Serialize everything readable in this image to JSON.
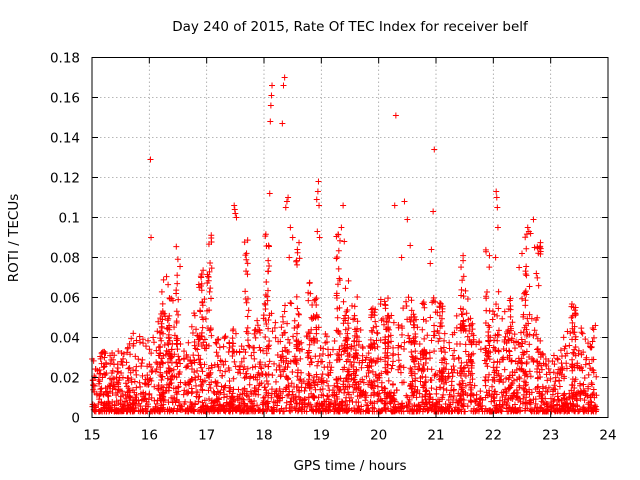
{
  "chart_data": {
    "type": "scatter",
    "title": "Day 240 of 2015, Rate Of TEC Index for receiver belf",
    "xlabel": "GPS time / hours",
    "ylabel": "ROTI / TECUs",
    "xlim": [
      15,
      24
    ],
    "ylim": [
      0,
      0.18
    ],
    "xticks": [
      15,
      16,
      17,
      18,
      19,
      20,
      21,
      22,
      23,
      24
    ],
    "xtick_labels": [
      "15",
      "16",
      "17",
      "18",
      "19",
      "20",
      "21",
      "22",
      "23",
      "24"
    ],
    "yticks": [
      0,
      0.02,
      0.04,
      0.06,
      0.08,
      0.1,
      0.12,
      0.14,
      0.16,
      0.18
    ],
    "ytick_labels": [
      "0",
      "0.02",
      "0.04",
      "0.06",
      "0.08",
      "0.1",
      "0.12",
      "0.14",
      "0.16",
      "0.18"
    ],
    "grid": true,
    "marker": "plus",
    "color": "#ff0000",
    "series": [
      {
        "name": "ROTI",
        "points": [
          [
            16.02,
            0.129
          ],
          [
            16.03,
            0.09
          ],
          [
            17.48,
            0.106
          ],
          [
            17.49,
            0.104
          ],
          [
            17.5,
            0.102
          ],
          [
            17.52,
            0.1
          ],
          [
            18.08,
            0.086
          ],
          [
            18.1,
            0.112
          ],
          [
            18.11,
            0.148
          ],
          [
            18.12,
            0.156
          ],
          [
            18.13,
            0.161
          ],
          [
            18.14,
            0.166
          ],
          [
            18.32,
            0.147
          ],
          [
            18.34,
            0.166
          ],
          [
            18.36,
            0.17
          ],
          [
            18.38,
            0.105
          ],
          [
            18.4,
            0.108
          ],
          [
            18.42,
            0.11
          ],
          [
            18.46,
            0.095
          ],
          [
            18.5,
            0.09
          ],
          [
            18.44,
            0.08
          ],
          [
            18.92,
            0.109
          ],
          [
            18.94,
            0.113
          ],
          [
            18.95,
            0.118
          ],
          [
            18.96,
            0.106
          ],
          [
            18.93,
            0.093
          ],
          [
            18.97,
            0.09
          ],
          [
            19.38,
            0.106
          ],
          [
            19.35,
            0.095
          ],
          [
            19.4,
            0.088
          ],
          [
            20.3,
            0.151
          ],
          [
            20.28,
            0.106
          ],
          [
            20.45,
            0.108
          ],
          [
            20.5,
            0.099
          ],
          [
            20.4,
            0.08
          ],
          [
            20.55,
            0.086
          ],
          [
            20.97,
            0.134
          ],
          [
            20.95,
            0.103
          ],
          [
            20.92,
            0.084
          ],
          [
            20.9,
            0.077
          ],
          [
            22.05,
            0.113
          ],
          [
            22.06,
            0.11
          ],
          [
            22.07,
            0.105
          ],
          [
            22.08,
            0.095
          ],
          [
            22.04,
            0.08
          ],
          [
            22.6,
            0.095
          ],
          [
            22.62,
            0.093
          ],
          [
            22.65,
            0.092
          ],
          [
            22.7,
            0.099
          ],
          [
            22.72,
            0.085
          ],
          [
            22.75,
            0.072
          ],
          [
            22.5,
            0.082
          ],
          [
            22.45,
            0.075
          ],
          [
            23.78,
            0.046
          ],
          [
            23.75,
            0.044
          ],
          [
            23.73,
            0.038
          ],
          [
            23.7,
            0.035
          ]
        ]
      }
    ]
  }
}
